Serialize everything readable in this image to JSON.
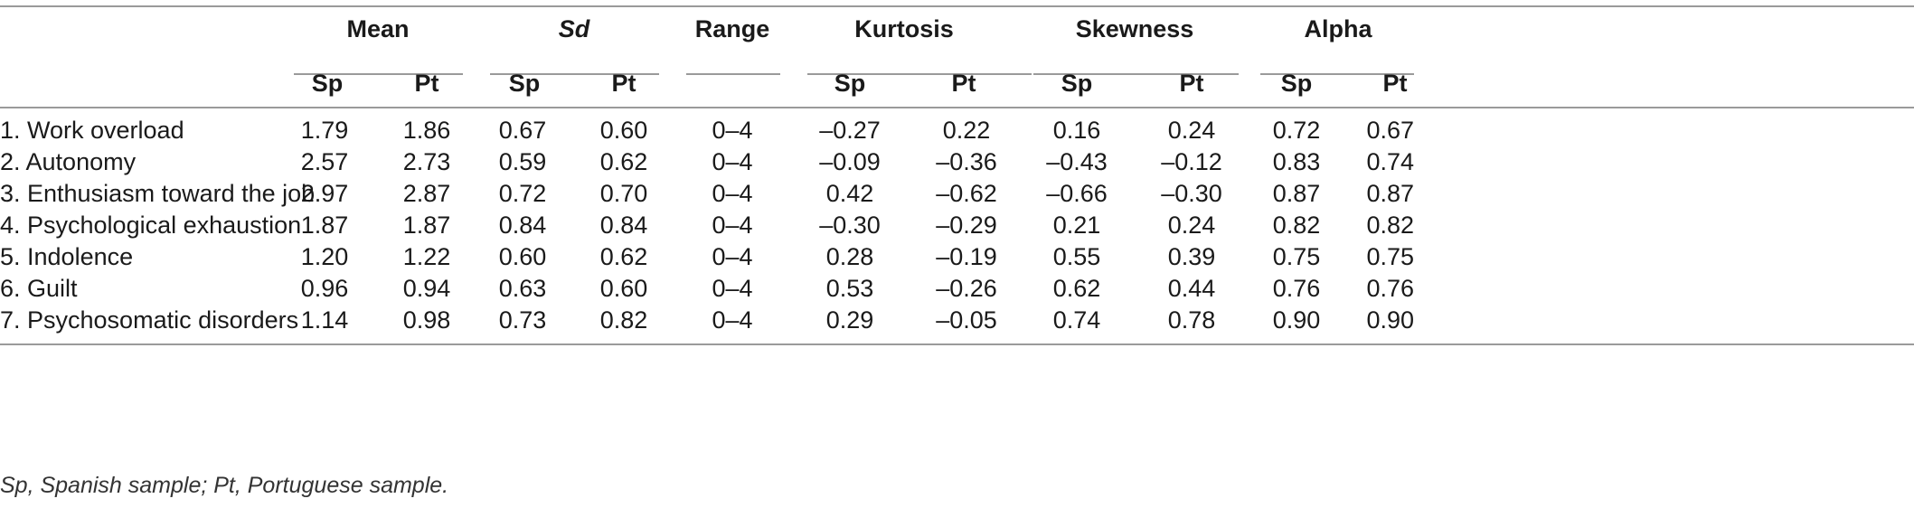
{
  "table": {
    "group_headers": [
      "Mean",
      "Sd",
      "Range",
      "Kurtosis",
      "Skewness",
      "Alpha"
    ],
    "sub_headers": [
      "Sp",
      "Pt",
      "Sp",
      "Pt",
      "",
      "Sp",
      "Pt",
      "Sp",
      "Pt",
      "Sp",
      "Pt"
    ],
    "rows": [
      {
        "label": "1. Work overload",
        "values": [
          "1.79",
          "1.86",
          "0.67",
          "0.60",
          "0–4",
          "–0.27",
          "0.22",
          "0.16",
          "0.24",
          "0.72",
          "0.67"
        ]
      },
      {
        "label": "2. Autonomy",
        "values": [
          "2.57",
          "2.73",
          "0.59",
          "0.62",
          "0–4",
          "–0.09",
          "–0.36",
          "–0.43",
          "–0.12",
          "0.83",
          "0.74"
        ]
      },
      {
        "label": "3. Enthusiasm toward the job",
        "values": [
          "2.97",
          "2.87",
          "0.72",
          "0.70",
          "0–4",
          "0.42",
          "–0.62",
          "–0.66",
          "–0.30",
          "0.87",
          "0.87"
        ]
      },
      {
        "label": "4. Psychological exhaustion",
        "values": [
          "1.87",
          "1.87",
          "0.84",
          "0.84",
          "0–4",
          "–0.30",
          "–0.29",
          "0.21",
          "0.24",
          "0.82",
          "0.82"
        ]
      },
      {
        "label": "5. Indolence",
        "values": [
          "1.20",
          "1.22",
          "0.60",
          "0.62",
          "0–4",
          "0.28",
          "–0.19",
          "0.55",
          "0.39",
          "0.75",
          "0.75"
        ]
      },
      {
        "label": "6. Guilt",
        "values": [
          "0.96",
          "0.94",
          "0.63",
          "0.60",
          "0–4",
          "0.53",
          "–0.26",
          "0.62",
          "0.44",
          "0.76",
          "0.76"
        ]
      },
      {
        "label": "7. Psychosomatic disorders",
        "values": [
          "1.14",
          "0.98",
          "0.73",
          "0.82",
          "0–4",
          "0.29",
          "–0.05",
          "0.74",
          "0.78",
          "0.90",
          "0.90"
        ]
      }
    ],
    "footnote": "Sp, Spanish sample; Pt, Portuguese sample."
  }
}
